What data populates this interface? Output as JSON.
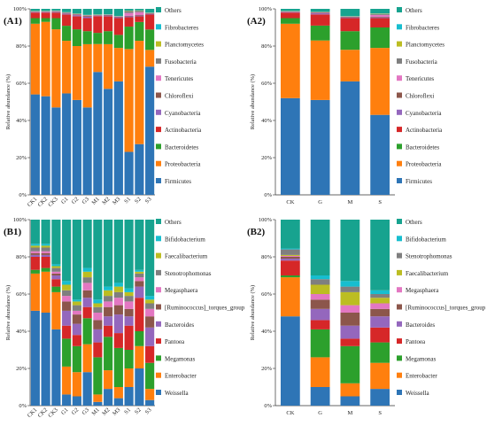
{
  "palette": {
    "Firmicutes": "#2e75b6",
    "Proteobacteria": "#ff7f0e",
    "Bacteroidetes": "#2ca02c",
    "Actinobacteria": "#d62728",
    "Cyanobacteria": "#9467bd",
    "Chloroflexi": "#8c564b",
    "Tenericutes": "#e377c2",
    "Fusobacteria": "#7f7f7f",
    "Planctomycetes": "#bcbd22",
    "Fibrobacteres": "#17becf",
    "Weissella": "#2e75b6",
    "Enterobacter": "#ff7f0e",
    "Megamonas": "#2ca02c",
    "Pantoea": "#d62728",
    "Bacteroides": "#9467bd",
    "[Ruminococcus]_torques_group": "#8c564b",
    "Megasphaera": "#e377c2",
    "Stenotrophomonas": "#7f7f7f",
    "Faecalibacterium": "#bcbd22",
    "Bifidobacterium": "#17becf",
    "Others": "#17a38f"
  },
  "chart_data": [
    {
      "panel": "(A1)",
      "type": "bar",
      "stacked": true,
      "ylabel": "Relative abundance (%)",
      "ylim": [
        0,
        100
      ],
      "yticks": [
        "0%",
        "20%",
        "40%",
        "60%",
        "80%",
        "100%"
      ],
      "categories": [
        "CK1",
        "CK2",
        "CK3",
        "G1",
        "G2",
        "G3",
        "M1",
        "M2",
        "M3",
        "S1",
        "S2",
        "S3"
      ],
      "legend": [
        "Others",
        "Fibrobacteres",
        "Planctomycetes",
        "Fusobacteria",
        "Tenericutes",
        "Chloroflexi",
        "Cyanobacteria",
        "Actinobacteria",
        "Bacteroidetes",
        "Proteobacteria",
        "Firmicutes"
      ],
      "series": [
        {
          "name": "Firmicutes",
          "values": [
            54,
            53,
            47,
            54,
            51,
            47,
            66,
            57,
            61,
            23,
            27,
            69
          ]
        },
        {
          "name": "Proteobacteria",
          "values": [
            38,
            40,
            42,
            28,
            29,
            34,
            15,
            24,
            18,
            55,
            55,
            9
          ]
        },
        {
          "name": "Bacteroidetes",
          "values": [
            3,
            2,
            6,
            8,
            9,
            7,
            6,
            7,
            7,
            12,
            10,
            11
          ]
        },
        {
          "name": "Actinobacteria",
          "values": [
            3,
            3,
            3,
            6,
            7,
            7,
            9,
            8,
            9,
            5,
            3,
            8
          ]
        },
        {
          "name": "Cyanobacteria",
          "values": [
            0.3,
            0.3,
            0.4,
            0.5,
            0.6,
            0.8,
            0.3,
            0.4,
            0.5,
            0.5,
            0.4,
            0.4
          ]
        },
        {
          "name": "Chloroflexi",
          "values": [
            0.2,
            0.2,
            0.3,
            0.3,
            0.3,
            0.4,
            0.2,
            0.3,
            0.3,
            0.3,
            0.3,
            0.3
          ]
        },
        {
          "name": "Tenericutes",
          "values": [
            0.1,
            0.1,
            0.1,
            0.1,
            0.2,
            0.2,
            0.1,
            0.1,
            0.1,
            1.5,
            1.5,
            0.1
          ]
        },
        {
          "name": "Fusobacteria",
          "values": [
            0.1,
            0.1,
            0.1,
            0.2,
            0.2,
            0.2,
            0.1,
            0.1,
            0.1,
            1.0,
            0.8,
            0.1
          ]
        },
        {
          "name": "Planctomycetes",
          "values": [
            0.1,
            0.1,
            0.1,
            0.1,
            0.1,
            0.1,
            0.1,
            0.1,
            0.1,
            0.2,
            0.2,
            0.1
          ]
        },
        {
          "name": "Fibrobacteres",
          "values": [
            0.1,
            0.1,
            0.1,
            0.1,
            0.1,
            0.1,
            0.1,
            0.1,
            0.1,
            0.1,
            0.1,
            0.1
          ]
        },
        {
          "name": "Others",
          "values": [
            1.1,
            1.1,
            0.9,
            1.7,
            2.5,
            3.2,
            3.0,
            2.9,
            3.8,
            0.9,
            0.7,
            2.0
          ]
        }
      ]
    },
    {
      "panel": "(A2)",
      "type": "bar",
      "stacked": true,
      "ylabel": "Relative abundance (%)",
      "ylim": [
        0,
        100
      ],
      "yticks": [
        "0%",
        "20%",
        "40%",
        "60%",
        "80%",
        "100%"
      ],
      "categories": [
        "CK",
        "G",
        "M",
        "S"
      ],
      "legend": [
        "Others",
        "Fibrobacteres",
        "Planctomycetes",
        "Fusobacteria",
        "Tenericutes",
        "Chloroflexi",
        "Cyanobacteria",
        "Actinobacteria",
        "Bacteroidetes",
        "Proteobacteria",
        "Firmicutes"
      ],
      "series": [
        {
          "name": "Firmicutes",
          "values": [
            52,
            51,
            61,
            43
          ]
        },
        {
          "name": "Proteobacteria",
          "values": [
            40,
            32,
            17,
            36
          ]
        },
        {
          "name": "Bacteroidetes",
          "values": [
            3,
            8,
            10,
            11
          ]
        },
        {
          "name": "Actinobacteria",
          "values": [
            3,
            6,
            7,
            5
          ]
        },
        {
          "name": "Cyanobacteria",
          "values": [
            0.3,
            0.6,
            0.4,
            0.4
          ]
        },
        {
          "name": "Chloroflexi",
          "values": [
            0.2,
            0.3,
            0.3,
            0.3
          ]
        },
        {
          "name": "Tenericutes",
          "values": [
            0.1,
            0.2,
            0.1,
            1.0
          ]
        },
        {
          "name": "Fusobacteria",
          "values": [
            0.1,
            0.2,
            0.1,
            0.6
          ]
        },
        {
          "name": "Planctomycetes",
          "values": [
            0.1,
            0.1,
            0.1,
            0.2
          ]
        },
        {
          "name": "Fibrobacteres",
          "values": [
            0.1,
            0.1,
            0.1,
            0.1
          ]
        },
        {
          "name": "Others",
          "values": [
            1.1,
            1.5,
            3.9,
            2.4
          ]
        }
      ]
    },
    {
      "panel": "(B1)",
      "type": "bar",
      "stacked": true,
      "ylabel": "Relative abundance (%)",
      "ylim": [
        0,
        100
      ],
      "yticks": [
        "0%",
        "20%",
        "40%",
        "60%",
        "80%",
        "100%"
      ],
      "categories": [
        "CK1",
        "CK2",
        "CK3",
        "G1",
        "G2",
        "G3",
        "M1",
        "M2",
        "M3",
        "S1",
        "S2",
        "S3"
      ],
      "legend": [
        "Others",
        "Bifidobacterium",
        "Faecalibacterium",
        "Stenotrophomonas",
        "Megasphaera",
        "[Ruminococcus]_torques_group",
        "Bacteroides",
        "Pantoea",
        "Megamonas",
        "Enterobacter",
        "Weissella"
      ],
      "series": [
        {
          "name": "Weissella",
          "values": [
            51,
            50,
            41,
            6,
            5,
            18,
            2,
            9,
            4,
            10,
            20,
            3
          ]
        },
        {
          "name": "Enterobacter",
          "values": [
            20,
            22,
            20,
            15,
            13,
            15,
            4,
            10,
            6,
            10,
            12,
            6
          ]
        },
        {
          "name": "Megamonas",
          "values": [
            2,
            2,
            3,
            15,
            14,
            14,
            20,
            18,
            21,
            10,
            8,
            14
          ]
        },
        {
          "name": "Pantoea",
          "values": [
            7,
            6,
            4,
            7,
            6,
            6,
            8,
            6,
            8,
            13,
            18,
            9
          ]
        },
        {
          "name": "Bacteroides",
          "values": [
            1,
            1,
            2,
            8,
            6,
            5,
            7,
            5,
            10,
            5,
            6,
            10
          ]
        },
        {
          "name": "[Ruminococcus]_torques_group",
          "values": [
            1,
            1,
            1,
            5,
            5,
            4,
            5,
            5,
            5,
            4,
            3,
            6
          ]
        },
        {
          "name": "Megasphaera",
          "values": [
            1,
            1,
            1,
            3,
            2,
            4,
            4,
            3,
            4,
            4,
            2,
            4
          ]
        },
        {
          "name": "Stenotrophomonas",
          "values": [
            2,
            2,
            2,
            3,
            3,
            3,
            3,
            3,
            3,
            3,
            2,
            3
          ]
        },
        {
          "name": "Faecalibacterium",
          "values": [
            1,
            1,
            1,
            3,
            2,
            3,
            2,
            3,
            3,
            2,
            1,
            2
          ]
        },
        {
          "name": "Bifidobacterium",
          "values": [
            1,
            1,
            1,
            2,
            1,
            2,
            2,
            2,
            2,
            2,
            1,
            2
          ]
        },
        {
          "name": "Others",
          "values": [
            13,
            13,
            24,
            33,
            43,
            26,
            43,
            36,
            34,
            37,
            27,
            41
          ]
        }
      ]
    },
    {
      "panel": "(B2)",
      "type": "bar",
      "stacked": true,
      "ylabel": "Relative abundance (%)",
      "ylim": [
        0,
        100
      ],
      "yticks": [
        "0%",
        "20%",
        "40%",
        "60%",
        "80%",
        "100%"
      ],
      "categories": [
        "CK",
        "G",
        "M",
        "S"
      ],
      "legend": [
        "Others",
        "Bifidobacterium",
        "Stenotrophomonas",
        "Faecalibacterium",
        "Megasphaera",
        "[Ruminococcus]_torques_group",
        "Bacteroides",
        "Pantoea",
        "Megamonas",
        "Enterobacter",
        "Weissella"
      ],
      "series": [
        {
          "name": "Weissella",
          "values": [
            48,
            10,
            5,
            9
          ]
        },
        {
          "name": "Enterobacter",
          "values": [
            21,
            16,
            7,
            14
          ]
        },
        {
          "name": "Megamonas",
          "values": [
            1,
            15,
            20,
            11
          ]
        },
        {
          "name": "Pantoea",
          "values": [
            8,
            5,
            4,
            8
          ]
        },
        {
          "name": "Bacteroides",
          "values": [
            1,
            6,
            7,
            6
          ]
        },
        {
          "name": "[Ruminococcus]_torques_group",
          "values": [
            1,
            5,
            7,
            4
          ]
        },
        {
          "name": "Megasphaera",
          "values": [
            0.5,
            3,
            4,
            3
          ]
        },
        {
          "name": "Faecalibacterium",
          "values": [
            0.5,
            5,
            7,
            3
          ]
        },
        {
          "name": "Stenotrophomonas",
          "values": [
            3,
            3,
            3,
            2
          ]
        },
        {
          "name": "Bifidobacterium",
          "values": [
            0.5,
            2,
            3,
            2
          ]
        },
        {
          "name": "Others",
          "values": [
            15.5,
            30,
            33,
            38
          ]
        }
      ]
    }
  ]
}
